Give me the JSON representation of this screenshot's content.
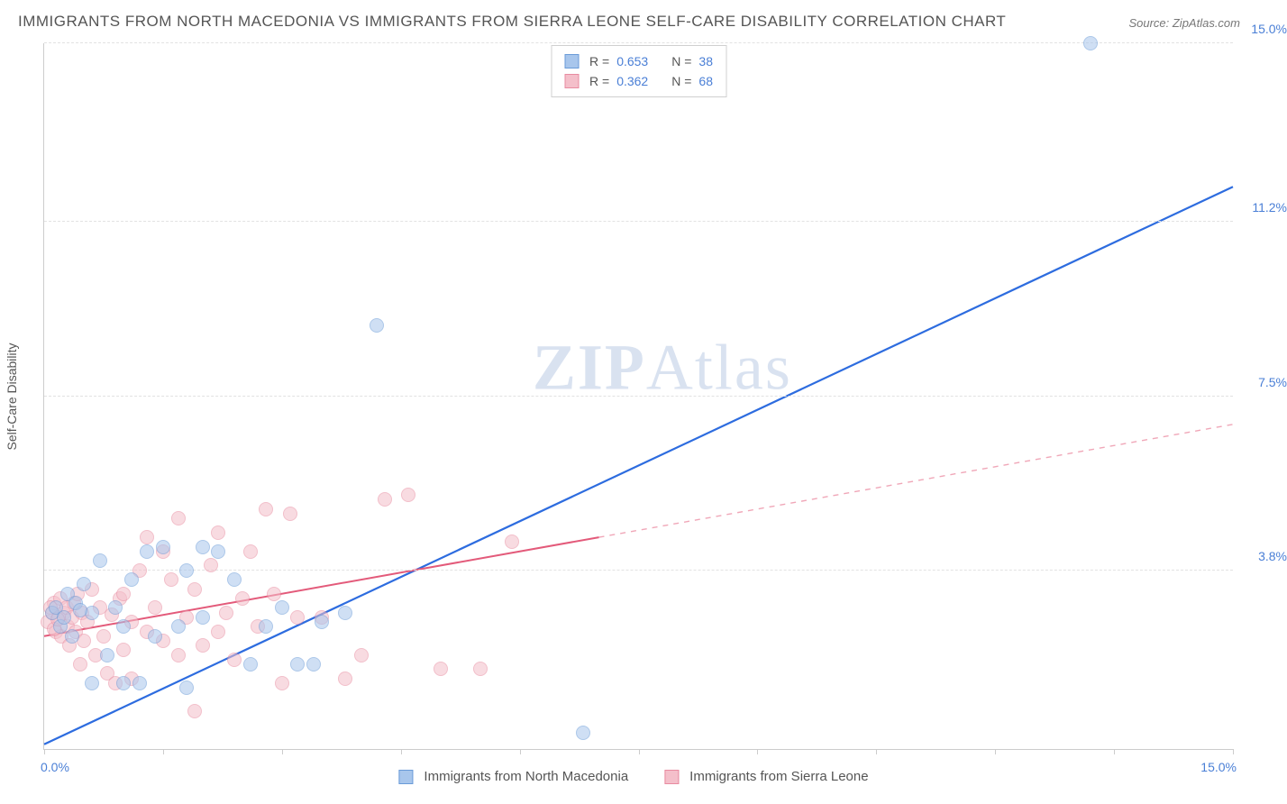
{
  "title": "IMMIGRANTS FROM NORTH MACEDONIA VS IMMIGRANTS FROM SIERRA LEONE SELF-CARE DISABILITY CORRELATION CHART",
  "source_prefix": "Source: ",
  "source_name": "ZipAtlas.com",
  "watermark_a": "ZIP",
  "watermark_b": "Atlas",
  "chart": {
    "type": "scatter",
    "xlim": [
      0,
      15
    ],
    "ylim": [
      0,
      15
    ],
    "x_ticks": [
      0,
      1.5,
      3,
      4.5,
      6,
      7.5,
      9,
      10.5,
      12,
      13.5,
      15
    ],
    "y_gridlines": [
      3.8,
      7.5,
      11.2,
      15.0
    ],
    "x_axis_min_label": "0.0%",
    "x_axis_max_label": "15.0%",
    "y_axis_label": "Self-Care Disability",
    "y_tick_labels": [
      "3.8%",
      "7.5%",
      "11.2%",
      "15.0%"
    ],
    "background_color": "#ffffff",
    "grid_color": "#e2e2e2",
    "axis_color": "#cccccc",
    "tick_label_color": "#4a7fd6",
    "marker_radius": 8,
    "marker_opacity": 0.55,
    "series": [
      {
        "name": "Immigrants from North Macedonia",
        "color_fill": "#a8c6ec",
        "color_stroke": "#6a9bd8",
        "trend": {
          "slope": 0.79,
          "intercept": 0.1,
          "solid_to_x": 15,
          "stroke": "#2d6cdf",
          "width": 2.2
        },
        "R_label": "R =",
        "R_value": "0.653",
        "N_label": "N =",
        "N_value": "38",
        "points": [
          [
            0.1,
            2.9
          ],
          [
            0.15,
            3.0
          ],
          [
            0.2,
            2.6
          ],
          [
            0.25,
            2.8
          ],
          [
            0.3,
            3.3
          ],
          [
            0.35,
            2.4
          ],
          [
            0.4,
            3.1
          ],
          [
            0.5,
            3.5
          ],
          [
            0.6,
            2.9
          ],
          [
            0.6,
            1.4
          ],
          [
            0.7,
            4.0
          ],
          [
            0.8,
            2.0
          ],
          [
            0.9,
            3.0
          ],
          [
            1.0,
            2.6
          ],
          [
            1.0,
            1.4
          ],
          [
            1.1,
            3.6
          ],
          [
            1.2,
            1.4
          ],
          [
            1.3,
            4.2
          ],
          [
            1.4,
            2.4
          ],
          [
            1.5,
            4.3
          ],
          [
            1.7,
            2.6
          ],
          [
            1.8,
            3.8
          ],
          [
            1.8,
            1.3
          ],
          [
            2.0,
            4.3
          ],
          [
            2.0,
            2.8
          ],
          [
            2.2,
            4.2
          ],
          [
            2.4,
            3.6
          ],
          [
            2.6,
            1.8
          ],
          [
            2.8,
            2.6
          ],
          [
            3.0,
            3.0
          ],
          [
            3.2,
            1.8
          ],
          [
            3.4,
            1.8
          ],
          [
            3.5,
            2.7
          ],
          [
            3.8,
            2.9
          ],
          [
            4.2,
            9.0
          ],
          [
            6.8,
            0.35
          ],
          [
            13.2,
            15.0
          ],
          [
            0.45,
            2.95
          ]
        ]
      },
      {
        "name": "Immigrants from Sierra Leone",
        "color_fill": "#f4bfca",
        "color_stroke": "#e88ba0",
        "trend": {
          "slope": 0.3,
          "intercept": 2.4,
          "solid_to_x": 7.0,
          "stroke": "#e35a7a",
          "width": 2.0,
          "dash_color": "#f0a7b8"
        },
        "R_label": "R =",
        "R_value": "0.362",
        "N_label": "N =",
        "N_value": "68",
        "points": [
          [
            0.05,
            2.7
          ],
          [
            0.1,
            2.9
          ],
          [
            0.12,
            3.1
          ],
          [
            0.15,
            2.5
          ],
          [
            0.18,
            2.8
          ],
          [
            0.2,
            3.2
          ],
          [
            0.22,
            2.4
          ],
          [
            0.25,
            2.9
          ],
          [
            0.28,
            3.0
          ],
          [
            0.3,
            2.6
          ],
          [
            0.32,
            2.2
          ],
          [
            0.35,
            2.8
          ],
          [
            0.38,
            3.1
          ],
          [
            0.4,
            2.5
          ],
          [
            0.42,
            3.3
          ],
          [
            0.45,
            1.8
          ],
          [
            0.48,
            2.9
          ],
          [
            0.5,
            2.3
          ],
          [
            0.55,
            2.7
          ],
          [
            0.6,
            3.4
          ],
          [
            0.65,
            2.0
          ],
          [
            0.7,
            3.0
          ],
          [
            0.75,
            2.4
          ],
          [
            0.8,
            1.6
          ],
          [
            0.85,
            2.85
          ],
          [
            0.9,
            1.4
          ],
          [
            0.95,
            3.2
          ],
          [
            1.0,
            2.1
          ],
          [
            1.0,
            3.3
          ],
          [
            1.1,
            2.7
          ],
          [
            1.1,
            1.5
          ],
          [
            1.2,
            3.8
          ],
          [
            1.3,
            2.5
          ],
          [
            1.3,
            4.5
          ],
          [
            1.4,
            3.0
          ],
          [
            1.5,
            2.3
          ],
          [
            1.5,
            4.2
          ],
          [
            1.6,
            3.6
          ],
          [
            1.7,
            2.0
          ],
          [
            1.7,
            4.9
          ],
          [
            1.8,
            2.8
          ],
          [
            1.9,
            3.4
          ],
          [
            1.9,
            0.8
          ],
          [
            2.0,
            2.2
          ],
          [
            2.1,
            3.9
          ],
          [
            2.2,
            2.5
          ],
          [
            2.2,
            4.6
          ],
          [
            2.3,
            2.9
          ],
          [
            2.4,
            1.9
          ],
          [
            2.5,
            3.2
          ],
          [
            2.6,
            4.2
          ],
          [
            2.7,
            2.6
          ],
          [
            2.8,
            5.1
          ],
          [
            2.9,
            3.3
          ],
          [
            3.0,
            1.4
          ],
          [
            3.1,
            5.0
          ],
          [
            3.2,
            2.8
          ],
          [
            3.5,
            2.8
          ],
          [
            3.8,
            1.5
          ],
          [
            4.0,
            2.0
          ],
          [
            4.3,
            5.3
          ],
          [
            4.6,
            5.4
          ],
          [
            5.0,
            1.7
          ],
          [
            5.5,
            1.7
          ],
          [
            5.9,
            4.4
          ],
          [
            0.08,
            3.0
          ],
          [
            0.13,
            2.55
          ],
          [
            0.17,
            2.75
          ]
        ]
      }
    ]
  }
}
